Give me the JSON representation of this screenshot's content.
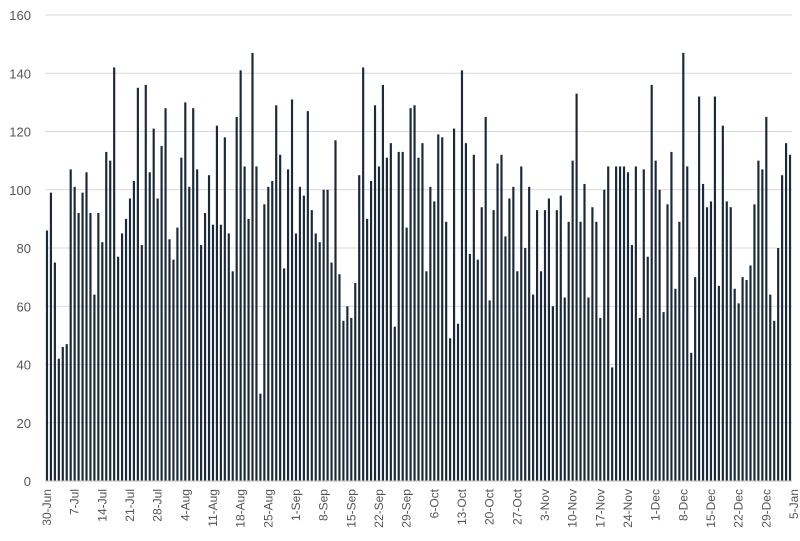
{
  "chart_data": {
    "type": "bar",
    "title": "",
    "xlabel": "",
    "ylabel": "",
    "ylim": [
      0,
      160
    ],
    "yticks": [
      0,
      20,
      40,
      60,
      80,
      100,
      120,
      140,
      160
    ],
    "grid": true,
    "legend": "none",
    "bar_color": "#1b2a3a",
    "grid_color": "#d9d9d9",
    "xtick_labels": [
      "30-Jun",
      "7-Jul",
      "14-Jul",
      "21-Jul",
      "28-Jul",
      "4-Aug",
      "11-Aug",
      "18-Aug",
      "25-Aug",
      "1-Sep",
      "8-Sep",
      "15-Sep",
      "22-Sep",
      "29-Sep",
      "6-Oct",
      "13-Oct",
      "20-Oct",
      "27-Oct",
      "3-Nov",
      "10-Nov",
      "17-Nov",
      "24-Nov",
      "1-Dec",
      "8-Dec",
      "15-Dec",
      "22-Dec",
      "29-Dec",
      "5-Jan"
    ],
    "values": [
      86,
      99,
      75,
      42,
      46,
      47,
      107,
      101,
      92,
      99,
      106,
      92,
      64,
      92,
      82,
      113,
      110,
      142,
      77,
      85,
      90,
      97,
      103,
      135,
      81,
      136,
      106,
      121,
      97,
      115,
      128,
      83,
      76,
      87,
      111,
      130,
      101,
      128,
      107,
      81,
      92,
      105,
      88,
      122,
      88,
      118,
      85,
      72,
      125,
      141,
      108,
      90,
      147,
      108,
      30,
      95,
      101,
      103,
      129,
      112,
      73,
      107,
      131,
      85,
      101,
      98,
      127,
      93,
      85,
      82,
      100,
      100,
      75,
      117,
      71,
      55,
      60,
      56,
      68,
      105,
      142,
      90,
      103,
      129,
      108,
      136,
      111,
      116,
      53,
      113,
      113,
      87,
      128,
      129,
      111,
      116,
      72,
      101,
      96,
      119,
      118,
      89,
      49,
      121,
      54,
      141,
      116,
      78,
      112,
      76,
      94,
      125,
      62,
      93,
      109,
      112,
      84,
      97,
      101,
      72,
      108,
      80,
      101,
      64,
      93,
      72,
      93,
      97,
      60,
      93,
      98,
      63,
      89,
      110,
      133,
      89,
      102,
      63,
      94,
      89,
      56,
      100,
      108,
      39,
      108,
      108,
      108,
      106,
      81,
      108,
      56,
      107,
      77,
      136,
      110,
      100,
      58,
      95,
      113,
      66,
      89,
      147,
      108,
      44,
      70,
      132,
      102,
      94,
      96,
      132,
      67,
      122,
      96,
      94,
      66,
      61,
      70,
      69,
      74,
      95,
      110,
      107,
      125,
      64,
      55,
      80,
      105,
      116,
      112
    ]
  }
}
